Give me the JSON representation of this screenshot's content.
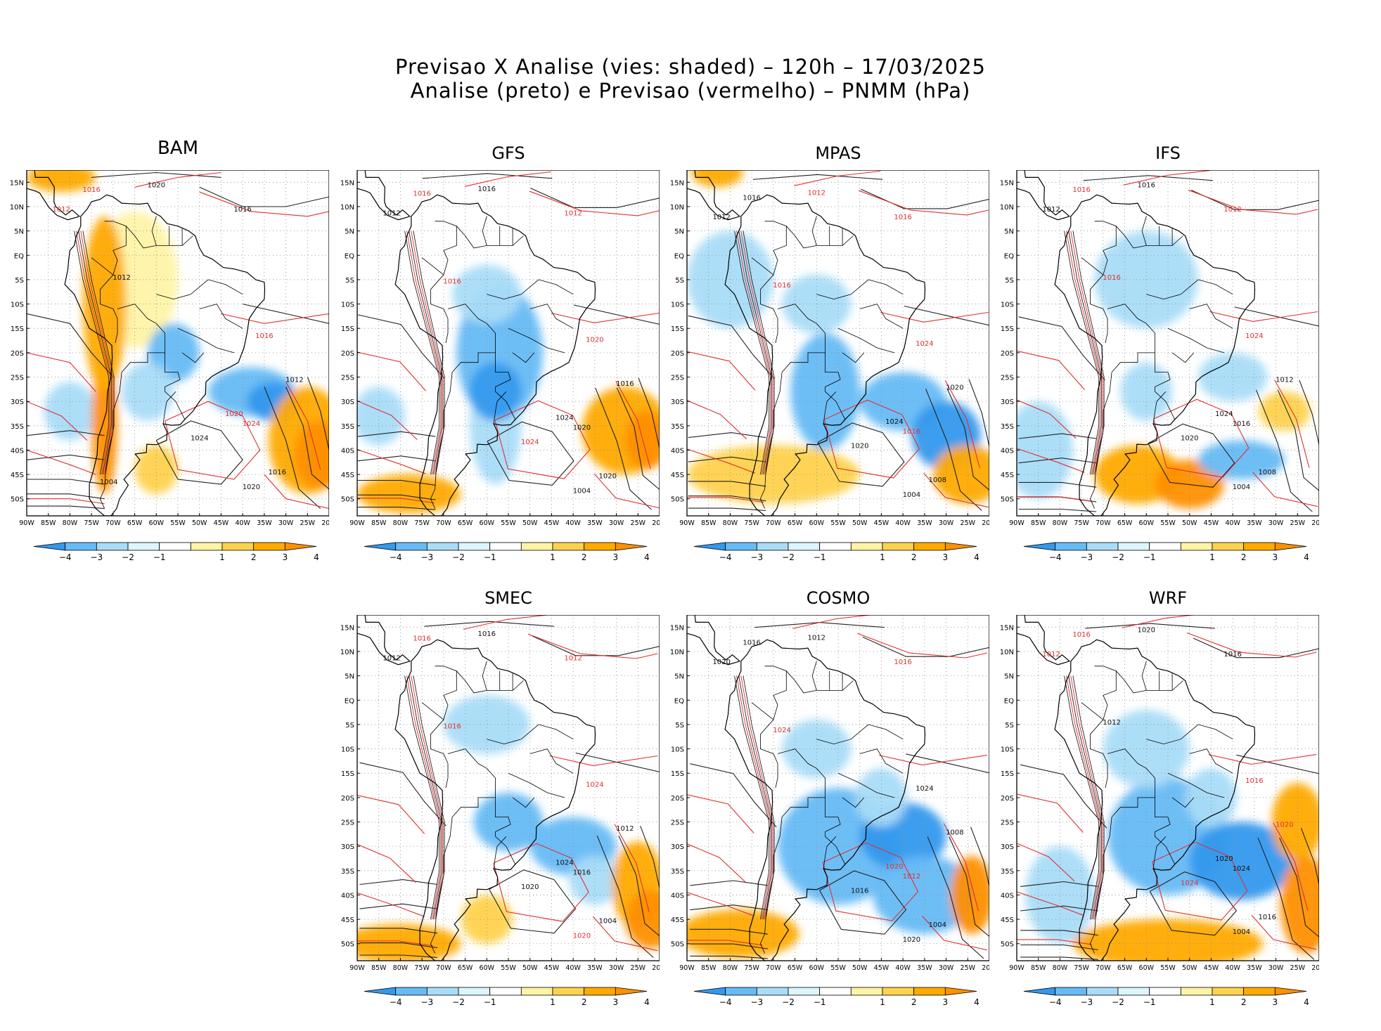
{
  "title_line1": "Previsao X Analise (vies: shaded) – 120h – 17/03/2025",
  "title_line2": "Analise (preto) e Previsao (vermelho) – PNMM (hPa)",
  "lat_labels": [
    "15N",
    "10N",
    "5N",
    "EQ",
    "5S",
    "10S",
    "15S",
    "20S",
    "25S",
    "30S",
    "35S",
    "40S",
    "45S",
    "50S"
  ],
  "lon_labels": [
    "90W",
    "85W",
    "80W",
    "75W",
    "70W",
    "65W",
    "60W",
    "55W",
    "50W",
    "45W",
    "40W",
    "35W",
    "30W",
    "25W",
    "20W"
  ],
  "colorbar": {
    "labels": [
      "−4",
      "−3",
      "−2",
      "−1",
      "1",
      "2",
      "3",
      "4"
    ],
    "colors": [
      "#3399ee",
      "#66bbf5",
      "#a9dcf8",
      "#ddf5fd",
      "#ffffff",
      "#fff3a6",
      "#ffd24d",
      "#ffaa00",
      "#ff9000"
    ]
  },
  "panels": [
    {
      "name": "BAM",
      "contours": [
        {
          "text": "1016",
          "color": "red"
        },
        {
          "text": "1020",
          "color": "black"
        },
        {
          "text": "1016",
          "color": "black"
        },
        {
          "text": "1012",
          "color": "red"
        },
        {
          "text": "1012",
          "color": "black"
        },
        {
          "text": "1016",
          "color": "red"
        },
        {
          "text": "1020",
          "color": "red"
        },
        {
          "text": "1024",
          "color": "black"
        },
        {
          "text": "1024",
          "color": "red"
        },
        {
          "text": "1012",
          "color": "black"
        },
        {
          "text": "1016",
          "color": "black"
        },
        {
          "text": "1020",
          "color": "black"
        },
        {
          "text": "1004",
          "color": "black"
        }
      ]
    },
    {
      "name": "GFS",
      "contours": [
        {
          "text": "1016",
          "color": "red"
        },
        {
          "text": "1016",
          "color": "black"
        },
        {
          "text": "1012",
          "color": "red"
        },
        {
          "text": "1012",
          "color": "black"
        },
        {
          "text": "1016",
          "color": "red"
        },
        {
          "text": "1020",
          "color": "red"
        },
        {
          "text": "1024",
          "color": "black"
        },
        {
          "text": "1024",
          "color": "red"
        },
        {
          "text": "1020",
          "color": "black"
        },
        {
          "text": "1016",
          "color": "black"
        },
        {
          "text": "1020",
          "color": "black"
        },
        {
          "text": "1004",
          "color": "black"
        }
      ]
    },
    {
      "name": "MPAS",
      "contours": [
        {
          "text": "1016",
          "color": "black"
        },
        {
          "text": "1012",
          "color": "red"
        },
        {
          "text": "1016",
          "color": "red"
        },
        {
          "text": "1012",
          "color": "black"
        },
        {
          "text": "1016",
          "color": "red"
        },
        {
          "text": "1024",
          "color": "red"
        },
        {
          "text": "1024",
          "color": "black"
        },
        {
          "text": "1020",
          "color": "black"
        },
        {
          "text": "1016",
          "color": "red"
        },
        {
          "text": "1020",
          "color": "black"
        },
        {
          "text": "1008",
          "color": "black"
        },
        {
          "text": "1004",
          "color": "black"
        }
      ]
    },
    {
      "name": "IFS",
      "contours": [
        {
          "text": "1016",
          "color": "red"
        },
        {
          "text": "1016",
          "color": "black"
        },
        {
          "text": "1012",
          "color": "red"
        },
        {
          "text": "1012",
          "color": "black"
        },
        {
          "text": "1016",
          "color": "red"
        },
        {
          "text": "1024",
          "color": "red"
        },
        {
          "text": "1024",
          "color": "black"
        },
        {
          "text": "1020",
          "color": "black"
        },
        {
          "text": "1016",
          "color": "black"
        },
        {
          "text": "1012",
          "color": "black"
        },
        {
          "text": "1008",
          "color": "black"
        },
        {
          "text": "1004",
          "color": "black"
        }
      ]
    },
    {
      "name": "SMEC",
      "contours": [
        {
          "text": "1016",
          "color": "red"
        },
        {
          "text": "1016",
          "color": "black"
        },
        {
          "text": "1012",
          "color": "red"
        },
        {
          "text": "1012",
          "color": "black"
        },
        {
          "text": "1016",
          "color": "red"
        },
        {
          "text": "1024",
          "color": "red"
        },
        {
          "text": "1024",
          "color": "black"
        },
        {
          "text": "1020",
          "color": "black"
        },
        {
          "text": "1016",
          "color": "black"
        },
        {
          "text": "1012",
          "color": "black"
        },
        {
          "text": "1004",
          "color": "black"
        },
        {
          "text": "1020",
          "color": "red"
        }
      ]
    },
    {
      "name": "COSMO",
      "contours": [
        {
          "text": "1016",
          "color": "black"
        },
        {
          "text": "1012",
          "color": "black"
        },
        {
          "text": "1016",
          "color": "red"
        },
        {
          "text": "1020",
          "color": "black"
        },
        {
          "text": "1024",
          "color": "red"
        },
        {
          "text": "1024",
          "color": "black"
        },
        {
          "text": "1020",
          "color": "red"
        },
        {
          "text": "1016",
          "color": "black"
        },
        {
          "text": "1012",
          "color": "red"
        },
        {
          "text": "1008",
          "color": "black"
        },
        {
          "text": "1004",
          "color": "black"
        },
        {
          "text": "1020",
          "color": "black"
        }
      ]
    },
    {
      "name": "WRF",
      "contours": [
        {
          "text": "1016",
          "color": "red"
        },
        {
          "text": "1020",
          "color": "black"
        },
        {
          "text": "1016",
          "color": "black"
        },
        {
          "text": "1012",
          "color": "red"
        },
        {
          "text": "1012",
          "color": "black"
        },
        {
          "text": "1016",
          "color": "red"
        },
        {
          "text": "1020",
          "color": "black"
        },
        {
          "text": "1024",
          "color": "red"
        },
        {
          "text": "1024",
          "color": "black"
        },
        {
          "text": "1020",
          "color": "red"
        },
        {
          "text": "1016",
          "color": "black"
        },
        {
          "text": "1004",
          "color": "black"
        }
      ]
    }
  ]
}
